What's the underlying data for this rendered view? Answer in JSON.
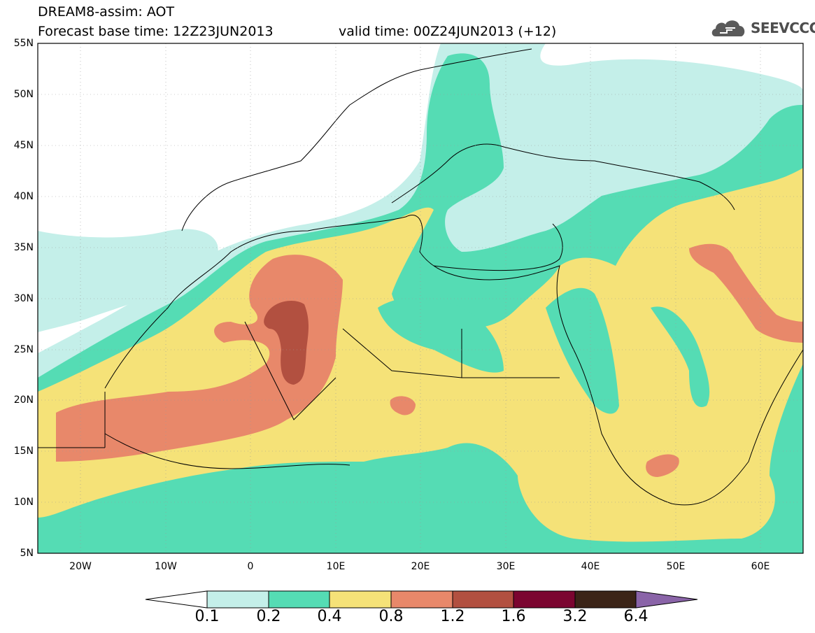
{
  "header": {
    "title": "DREAM8-assim: AOT",
    "base_time": "Forecast base time: 12Z23JUN2013",
    "valid_time": "valid time: 00Z24JUN2013 (+12)"
  },
  "logo": {
    "text": "SEEVCCC",
    "icon": "cloud-icon"
  },
  "map": {
    "lat_labels": [
      "55N",
      "50N",
      "45N",
      "40N",
      "35N",
      "30N",
      "25N",
      "20N",
      "15N",
      "10N",
      "5N"
    ],
    "lon_labels": [
      "20W",
      "10W",
      "0",
      "10E",
      "20E",
      "30E",
      "40E",
      "50E",
      "60E"
    ],
    "extent": {
      "lon_min": -25,
      "lon_max": 65,
      "lat_min": 5,
      "lat_max": 55
    }
  },
  "colorbar": {
    "levels": [
      "0.1",
      "0.2",
      "0.4",
      "0.8",
      "1.2",
      "1.6",
      "3.2",
      "6.4"
    ],
    "colors": [
      "#ffffff",
      "#c4efe9",
      "#55dcb4",
      "#f5e278",
      "#e8886a",
      "#b25040",
      "#7b0530",
      "#3b2417",
      "#8a64a8"
    ]
  }
}
